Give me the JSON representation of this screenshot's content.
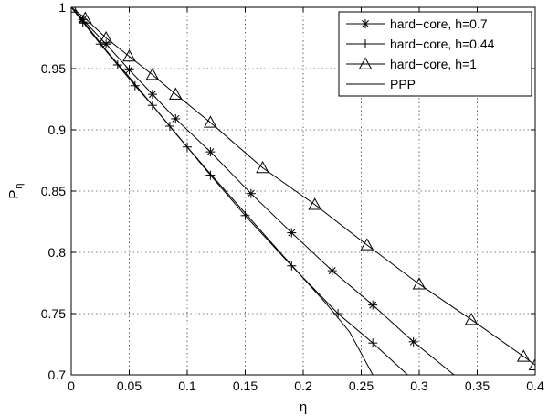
{
  "chart_data": {
    "type": "line",
    "title": "",
    "xlabel": "η",
    "ylabel": "P",
    "ylabel_subscript": "η",
    "xlim": [
      0,
      0.4
    ],
    "ylim": [
      0.7,
      1.0
    ],
    "xticks": [
      0,
      0.05,
      0.1,
      0.15,
      0.2,
      0.25,
      0.3,
      0.35,
      0.4
    ],
    "xtick_labels": [
      "0",
      "0.05",
      "0.1",
      "0.15",
      "0.2",
      "0.25",
      "0.3",
      "0.35",
      "0.4"
    ],
    "yticks": [
      0.7,
      0.75,
      0.8,
      0.85,
      0.9,
      0.95,
      1.0
    ],
    "ytick_labels": [
      "0.7",
      "0.75",
      "0.8",
      "0.85",
      "0.9",
      "0.95",
      "1"
    ],
    "grid": true,
    "legend_position": "top-right",
    "series": [
      {
        "name": "hard−core, h=0.7",
        "marker": "asterisk",
        "color": "#000000",
        "x": [
          0,
          0.01,
          0.03,
          0.05,
          0.07,
          0.09,
          0.12,
          0.155,
          0.19,
          0.225,
          0.26,
          0.295,
          0.33
        ],
        "y": [
          1.0,
          0.99,
          0.97,
          0.949,
          0.929,
          0.909,
          0.882,
          0.848,
          0.816,
          0.785,
          0.757,
          0.727,
          0.7
        ]
      },
      {
        "name": "hard−core, h=0.44",
        "marker": "plus",
        "color": "#000000",
        "x": [
          0,
          0.01,
          0.025,
          0.04,
          0.055,
          0.07,
          0.085,
          0.1,
          0.12,
          0.15,
          0.19,
          0.23,
          0.26,
          0.29
        ],
        "y": [
          1.0,
          0.988,
          0.97,
          0.953,
          0.936,
          0.92,
          0.903,
          0.886,
          0.863,
          0.83,
          0.789,
          0.75,
          0.726,
          0.7
        ]
      },
      {
        "name": "hard−core, h=1",
        "marker": "triangle",
        "color": "#000000",
        "x": [
          0,
          0.012,
          0.03,
          0.05,
          0.07,
          0.09,
          0.12,
          0.165,
          0.21,
          0.255,
          0.3,
          0.345,
          0.39,
          0.4
        ],
        "y": [
          1.0,
          0.991,
          0.975,
          0.96,
          0.945,
          0.929,
          0.906,
          0.869,
          0.839,
          0.806,
          0.774,
          0.745,
          0.715,
          0.708
        ]
      },
      {
        "name": "PPP",
        "marker": "none",
        "color": "#000000",
        "x": [
          0,
          0.01,
          0.02,
          0.03,
          0.05,
          0.07,
          0.09,
          0.1,
          0.12,
          0.15,
          0.18,
          0.2,
          0.22,
          0.24,
          0.26
        ],
        "y": [
          1.0,
          0.989,
          0.977,
          0.965,
          0.943,
          0.92,
          0.897,
          0.886,
          0.864,
          0.832,
          0.8,
          0.779,
          0.758,
          0.735,
          0.7
        ]
      }
    ]
  }
}
